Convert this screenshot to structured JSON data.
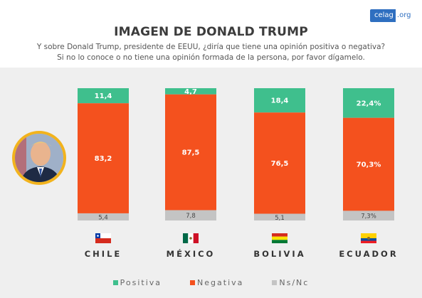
{
  "logo": {
    "part1": "celag",
    "part2": ".org"
  },
  "title": "IMAGEN DE DONALD TRUMP",
  "subtitle_line1": "Y sobre Donald Trump, presidente de EEUU, ¿diría que tiene una opinión positiva o negativa?",
  "subtitle_line2": "Si no lo conoce o no tiene una opinión formada de la persona, por favor dígamelo.",
  "colors": {
    "positiva": "#3fbf8d",
    "negativa": "#f4511e",
    "nsnc": "#c4c4c4"
  },
  "chart_data": {
    "type": "bar",
    "stacked": true,
    "normalized": true,
    "categories": [
      "CHILE",
      "MÉXICO",
      "BOLIVIA",
      "ECUADOR"
    ],
    "series": [
      {
        "name": "Positiva",
        "values": [
          11.4,
          4.7,
          18.4,
          22.4
        ],
        "labels": [
          "11,4",
          "4,7",
          "18,4",
          "22,4%"
        ]
      },
      {
        "name": "Negativa",
        "values": [
          83.2,
          87.5,
          76.5,
          70.3
        ],
        "labels": [
          "83,2",
          "87,5",
          "76,5",
          "70,3%"
        ]
      },
      {
        "name": "Ns/Nc",
        "values": [
          5.4,
          7.8,
          5.1,
          7.3
        ],
        "labels": [
          "5,4",
          "7,8",
          "5,1",
          "7,3%"
        ]
      }
    ],
    "legend": {
      "position": "bottom",
      "entries": [
        "Positiva",
        "Negativa",
        "Ns/Nc"
      ]
    }
  }
}
